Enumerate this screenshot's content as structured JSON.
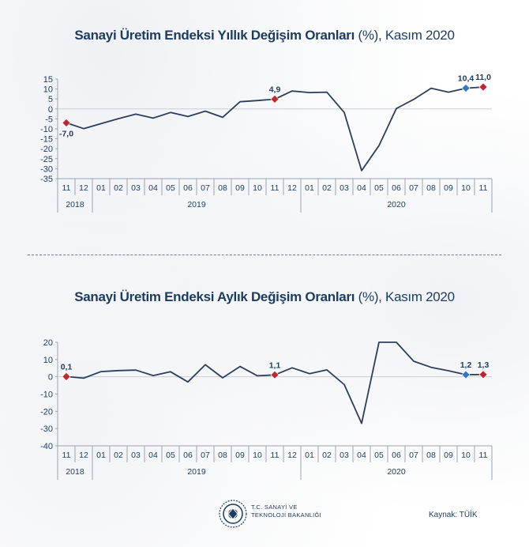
{
  "charts": [
    {
      "title_bold": "Sanayi Üretim Endeksi Yıllık Değişim Oranları",
      "title_light": "(%), Kasım 2020"
    },
    {
      "title_bold": "Sanayi Üretim Endeksi Aylık Değişim Oranları",
      "title_light": "(%), Kasım 2020"
    }
  ],
  "chart_data": [
    {
      "type": "line",
      "title": "Sanayi Üretim Endeksi Yıllık Değişim Oranları (%), Kasım 2020",
      "x": [
        "11",
        "12",
        "01",
        "02",
        "03",
        "04",
        "05",
        "06",
        "07",
        "08",
        "09",
        "10",
        "11",
        "12",
        "01",
        "02",
        "03",
        "04",
        "05",
        "06",
        "07",
        "08",
        "09",
        "10",
        "11"
      ],
      "years": [
        {
          "label": "2018",
          "span": [
            0,
            1
          ]
        },
        {
          "label": "2019",
          "span": [
            2,
            13
          ]
        },
        {
          "label": "2020",
          "span": [
            14,
            24
          ]
        }
      ],
      "values": [
        -7.0,
        -9.9,
        -7.4,
        -4.9,
        -2.6,
        -4.6,
        -1.8,
        -3.8,
        -1.1,
        -4.2,
        3.6,
        4.2,
        4.9,
        9.0,
        8.2,
        8.4,
        -1.8,
        -31.0,
        -18.4,
        0.2,
        4.8,
        10.4,
        8.4,
        10.4,
        11.0
      ],
      "ylim": [
        -35,
        15
      ],
      "yticks": [
        15,
        10,
        5,
        0,
        -5,
        -10,
        -15,
        -20,
        -25,
        -30,
        -35
      ],
      "markers": [
        {
          "index": 0,
          "label": "-7,0",
          "color": "#c0272d",
          "pos": "below"
        },
        {
          "index": 12,
          "label": "4,9",
          "color": "#c0272d",
          "pos": "above"
        },
        {
          "index": 23,
          "label": "10,4",
          "color": "#2f78c4",
          "pos": "above"
        },
        {
          "index": 24,
          "label": "11,0",
          "color": "#c0272d",
          "pos": "above"
        }
      ],
      "line_color": "#2d3f58"
    },
    {
      "type": "line",
      "title": "Sanayi Üretim Endeksi Aylık Değişim Oranları (%), Kasım 2020",
      "x": [
        "11",
        "12",
        "01",
        "02",
        "03",
        "04",
        "05",
        "06",
        "07",
        "08",
        "09",
        "10",
        "11",
        "12",
        "01",
        "02",
        "03",
        "04",
        "05",
        "06",
        "07",
        "08",
        "09",
        "10",
        "11"
      ],
      "years": [
        {
          "label": "2018",
          "span": [
            0,
            1
          ]
        },
        {
          "label": "2019",
          "span": [
            2,
            13
          ]
        },
        {
          "label": "2020",
          "span": [
            14,
            24
          ]
        }
      ],
      "values": [
        0.1,
        -0.8,
        3.0,
        3.6,
        3.9,
        0.7,
        2.9,
        -3.0,
        7.0,
        -0.6,
        6.0,
        0.6,
        1.1,
        5.2,
        1.8,
        4.0,
        -4.5,
        -27.0,
        20.0,
        20.0,
        9.0,
        5.5,
        3.5,
        1.2,
        1.3
      ],
      "ylim": [
        -40,
        20
      ],
      "yticks": [
        20,
        10,
        0,
        -10,
        -20,
        -30,
        -40
      ],
      "markers": [
        {
          "index": 0,
          "label": "0,1",
          "color": "#c0272d",
          "pos": "above"
        },
        {
          "index": 12,
          "label": "1,1",
          "color": "#c0272d",
          "pos": "above"
        },
        {
          "index": 23,
          "label": "1,2",
          "color": "#2f78c4",
          "pos": "above"
        },
        {
          "index": 24,
          "label": "1,3",
          "color": "#c0272d",
          "pos": "above"
        }
      ],
      "line_color": "#2d3f58"
    }
  ],
  "footer": {
    "org_line1": "T.C. SANAYİ VE",
    "org_line2": "TEKNOLOJİ BAKANLIĞI",
    "source": "Kaynak: TÜİK"
  }
}
